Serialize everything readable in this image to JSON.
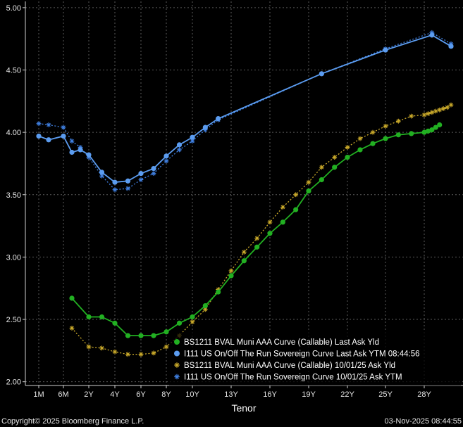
{
  "chart_data": {
    "type": "line",
    "xlabel": "Tenor",
    "x_ticks": [
      {
        "label": "1M",
        "t": 0.083
      },
      {
        "label": "6M",
        "t": 0.5
      },
      {
        "label": "2Y",
        "t": 2
      },
      {
        "label": "4Y",
        "t": 4
      },
      {
        "label": "6Y",
        "t": 6
      },
      {
        "label": "8Y",
        "t": 8
      },
      {
        "label": "10Y",
        "t": 10
      },
      {
        "label": "13Y",
        "t": 13
      },
      {
        "label": "16Y",
        "t": 16
      },
      {
        "label": "19Y",
        "t": 19
      },
      {
        "label": "22Y",
        "t": 22
      },
      {
        "label": "25Y",
        "t": 25
      },
      {
        "label": "28Y",
        "t": 28
      }
    ],
    "y_ticks": [
      "2.00",
      "2.50",
      "3.00",
      "3.50",
      "4.00",
      "4.50",
      "5.00"
    ],
    "ylim": [
      1.97,
      5.05
    ],
    "grid": true,
    "legend_position": "bottom-right",
    "series": [
      {
        "name": "BS1211 BVAL Muni AAA Curve (Callable) Last Ask Yld",
        "color": "#22b022",
        "marker": "circle",
        "dashed": false,
        "points": [
          [
            1,
            2.67
          ],
          [
            2,
            2.52
          ],
          [
            3,
            2.52
          ],
          [
            4,
            2.47
          ],
          [
            5,
            2.37
          ],
          [
            6,
            2.37
          ],
          [
            7,
            2.37
          ],
          [
            8,
            2.4
          ],
          [
            9,
            2.47
          ],
          [
            10,
            2.52
          ],
          [
            11,
            2.61
          ],
          [
            12,
            2.72
          ],
          [
            13,
            2.85
          ],
          [
            14,
            2.97
          ],
          [
            15,
            3.08
          ],
          [
            16,
            3.19
          ],
          [
            17,
            3.28
          ],
          [
            18,
            3.38
          ],
          [
            19,
            3.53
          ],
          [
            20,
            3.62
          ],
          [
            21,
            3.72
          ],
          [
            22,
            3.8
          ],
          [
            23,
            3.86
          ],
          [
            24,
            3.91
          ],
          [
            25,
            3.95
          ],
          [
            26,
            3.98
          ],
          [
            27,
            3.99
          ],
          [
            28,
            4.0
          ],
          [
            29,
            4.01
          ],
          [
            30,
            4.02
          ],
          [
            31,
            4.04
          ],
          [
            32,
            4.06
          ]
        ]
      },
      {
        "name": "I111 US On/Off The Run Sovereign Curve Last Ask YTM 08:44:56",
        "color": "#5b9cf0",
        "marker": "circle",
        "dashed": false,
        "points": [
          [
            0.083,
            3.97
          ],
          [
            0.25,
            3.94
          ],
          [
            0.5,
            3.97
          ],
          [
            1,
            3.84
          ],
          [
            1.5,
            3.86
          ],
          [
            2,
            3.82
          ],
          [
            3,
            3.68
          ],
          [
            4,
            3.6
          ],
          [
            5,
            3.61
          ],
          [
            6,
            3.67
          ],
          [
            7,
            3.71
          ],
          [
            8,
            3.81
          ],
          [
            9,
            3.9
          ],
          [
            10,
            3.96
          ],
          [
            11,
            4.04
          ],
          [
            12,
            4.11
          ],
          [
            20,
            4.47
          ],
          [
            25,
            4.66
          ],
          [
            30,
            4.78
          ],
          [
            35,
            4.69
          ]
        ]
      },
      {
        "name": "BS1211 BVAL Muni AAA Curve (Callable) 10/01/25 Ask Yld",
        "color": "#c8a82a",
        "marker": "star",
        "dashed": true,
        "points": [
          [
            1,
            2.43
          ],
          [
            2,
            2.28
          ],
          [
            3,
            2.27
          ],
          [
            4,
            2.24
          ],
          [
            5,
            2.22
          ],
          [
            6,
            2.22
          ],
          [
            7,
            2.23
          ],
          [
            8,
            2.28
          ],
          [
            9,
            2.37
          ],
          [
            10,
            2.48
          ],
          [
            11,
            2.58
          ],
          [
            12,
            2.74
          ],
          [
            13,
            2.89
          ],
          [
            14,
            3.04
          ],
          [
            15,
            3.15
          ],
          [
            16,
            3.28
          ],
          [
            17,
            3.4
          ],
          [
            18,
            3.5
          ],
          [
            19,
            3.6
          ],
          [
            20,
            3.72
          ],
          [
            21,
            3.8
          ],
          [
            22,
            3.88
          ],
          [
            23,
            3.95
          ],
          [
            24,
            4.0
          ],
          [
            25,
            4.05
          ],
          [
            26,
            4.09
          ],
          [
            27,
            4.13
          ],
          [
            28,
            4.14
          ],
          [
            29,
            4.15
          ],
          [
            30,
            4.16
          ],
          [
            31,
            4.17
          ],
          [
            32,
            4.18
          ],
          [
            33,
            4.19
          ],
          [
            34,
            4.2
          ],
          [
            35,
            4.22
          ]
        ]
      },
      {
        "name": "I111 US On/Off The Run Sovereign Curve 10/01/25 Ask YTM",
        "color": "#3f7fe0",
        "marker": "star",
        "dashed": true,
        "points": [
          [
            0.083,
            4.07
          ],
          [
            0.25,
            4.06
          ],
          [
            0.5,
            4.04
          ],
          [
            1,
            3.93
          ],
          [
            1.5,
            3.88
          ],
          [
            2,
            3.8
          ],
          [
            3,
            3.65
          ],
          [
            4,
            3.54
          ],
          [
            5,
            3.55
          ],
          [
            6,
            3.62
          ],
          [
            7,
            3.67
          ],
          [
            8,
            3.77
          ],
          [
            9,
            3.86
          ],
          [
            10,
            3.93
          ],
          [
            11,
            4.02
          ],
          [
            12,
            4.1
          ],
          [
            20,
            4.47
          ],
          [
            25,
            4.67
          ],
          [
            30,
            4.8
          ],
          [
            35,
            4.71
          ]
        ]
      }
    ]
  },
  "footer": {
    "copyright": "Copyright© 2025 Bloomberg Finance L.P.",
    "timestamp": "03-Nov-2025 08:44:55"
  }
}
